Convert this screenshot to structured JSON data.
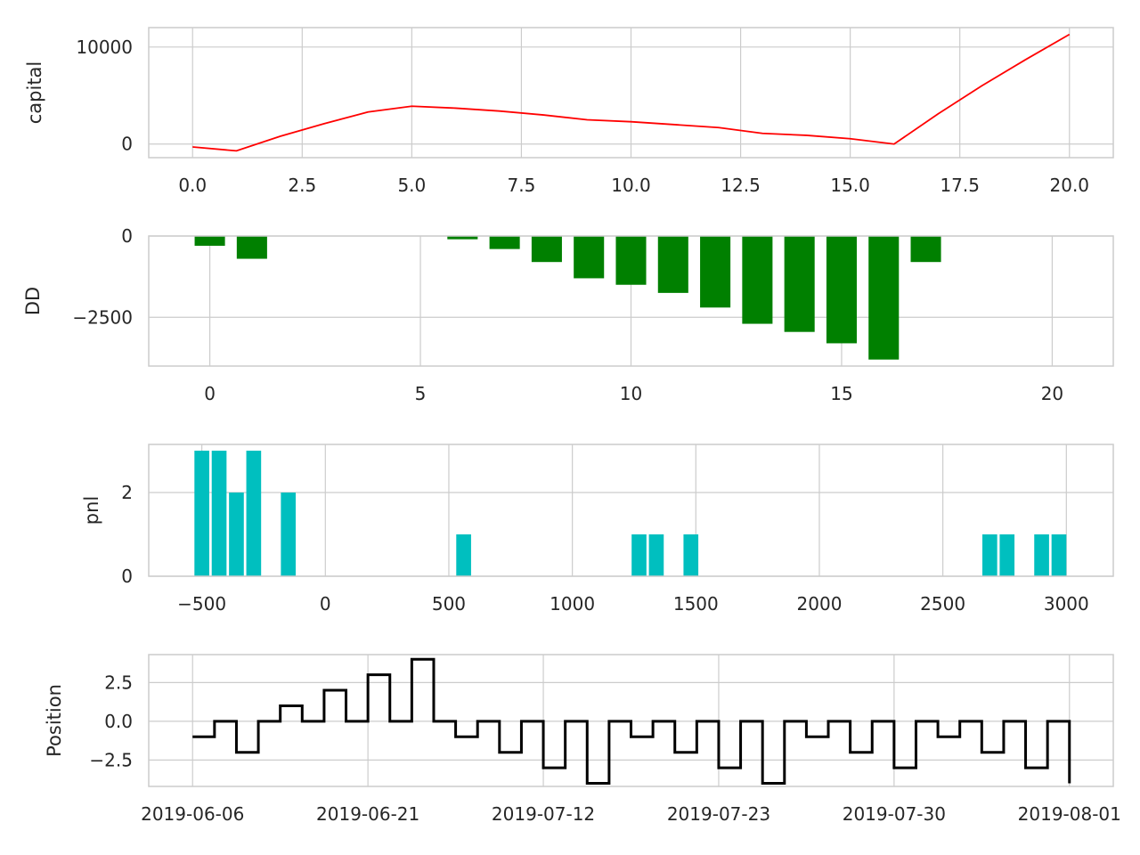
{
  "chart_data": [
    {
      "type": "line",
      "ylabel": "capital",
      "color": "#ff0000",
      "x": [
        0,
        1,
        2,
        3,
        4,
        5,
        6,
        7,
        8,
        9,
        10,
        11,
        12,
        13,
        14,
        15,
        16,
        17,
        18,
        19,
        20
      ],
      "y": [
        -300,
        -700,
        800,
        2100,
        3300,
        3900,
        3700,
        3400,
        3000,
        2500,
        2300,
        2000,
        1700,
        1100,
        900,
        550,
        0,
        3100,
        6000,
        8700,
        11300
      ],
      "xlim": [
        -1,
        21.0
      ],
      "ylim": [
        -1400,
        12000
      ],
      "xticks": [
        0,
        2.5,
        5,
        7.5,
        10,
        12.5,
        15,
        17.5,
        20
      ],
      "xtick_labels": [
        "0.0",
        "2.5",
        "5.0",
        "7.5",
        "10.0",
        "12.5",
        "15.0",
        "17.5",
        "20.0"
      ],
      "yticks": [
        0,
        10000
      ],
      "ytick_labels": [
        "0",
        "10000"
      ]
    },
    {
      "type": "bar",
      "ylabel": "DD",
      "color": "#008000",
      "x": [
        0,
        1,
        6,
        7,
        8,
        9,
        10,
        11,
        12,
        13,
        14,
        15,
        16,
        17
      ],
      "values": [
        -300,
        -700,
        -100,
        -400,
        -800,
        -1300,
        -1500,
        -1750,
        -2200,
        -2700,
        -2950,
        -3300,
        -3800,
        -800
      ],
      "bar_width": 0.72,
      "xlim": [
        -1.45,
        21.45
      ],
      "ylim": [
        -4000,
        0
      ],
      "xticks": [
        0,
        5,
        10,
        15,
        20
      ],
      "xtick_labels": [
        "0",
        "5",
        "10",
        "15",
        "20"
      ],
      "yticks": [
        0,
        -2500
      ],
      "ytick_labels": [
        "0",
        "−2500"
      ]
    },
    {
      "type": "bar",
      "ylabel": "pnl",
      "color": "#00bfbf",
      "x": [
        -500,
        -430,
        -360,
        -290,
        -150,
        560,
        1270,
        1340,
        1480,
        2690,
        2760,
        2900,
        2970
      ],
      "values": [
        3,
        3,
        2,
        3,
        2,
        1,
        1,
        1,
        1,
        1,
        1,
        1,
        1
      ],
      "bar_width": 60,
      "xlim": [
        -715,
        3190
      ],
      "ylim": [
        0,
        3.15
      ],
      "xticks": [
        -500,
        0,
        500,
        1000,
        1500,
        2000,
        2500,
        3000
      ],
      "xtick_labels": [
        "−500",
        "0",
        "500",
        "1000",
        "1500",
        "2000",
        "2500",
        "3000"
      ],
      "yticks": [
        0,
        2
      ],
      "ytick_labels": [
        "0",
        "2"
      ]
    },
    {
      "type": "line",
      "ylabel": "Position",
      "color": "#000000",
      "drawstyle": "steps-post",
      "y": [
        -1,
        0,
        -2,
        0,
        1,
        0,
        2,
        0,
        3,
        0,
        4,
        0,
        -1,
        0,
        -2,
        0,
        -3,
        0,
        -4,
        0,
        -1,
        0,
        -2,
        0,
        -3,
        0,
        -4,
        0,
        -1,
        0,
        -2,
        0,
        -3,
        0,
        -1,
        0,
        -2,
        0,
        -3,
        0,
        -4
      ],
      "xlim": [
        -2,
        42
      ],
      "ylim": [
        -4.2,
        4.3
      ],
      "yticks": [
        2.5,
        0,
        -2.5
      ],
      "ytick_labels": [
        "2.5",
        "0.0",
        "−2.5"
      ],
      "xtick_at": [
        0,
        8,
        16,
        24,
        32,
        40
      ],
      "xtick_labels": [
        "2019-06-06",
        "2019-06-21",
        "2019-07-12",
        "2019-07-23",
        "2019-07-30",
        "2019-08-01"
      ]
    }
  ]
}
